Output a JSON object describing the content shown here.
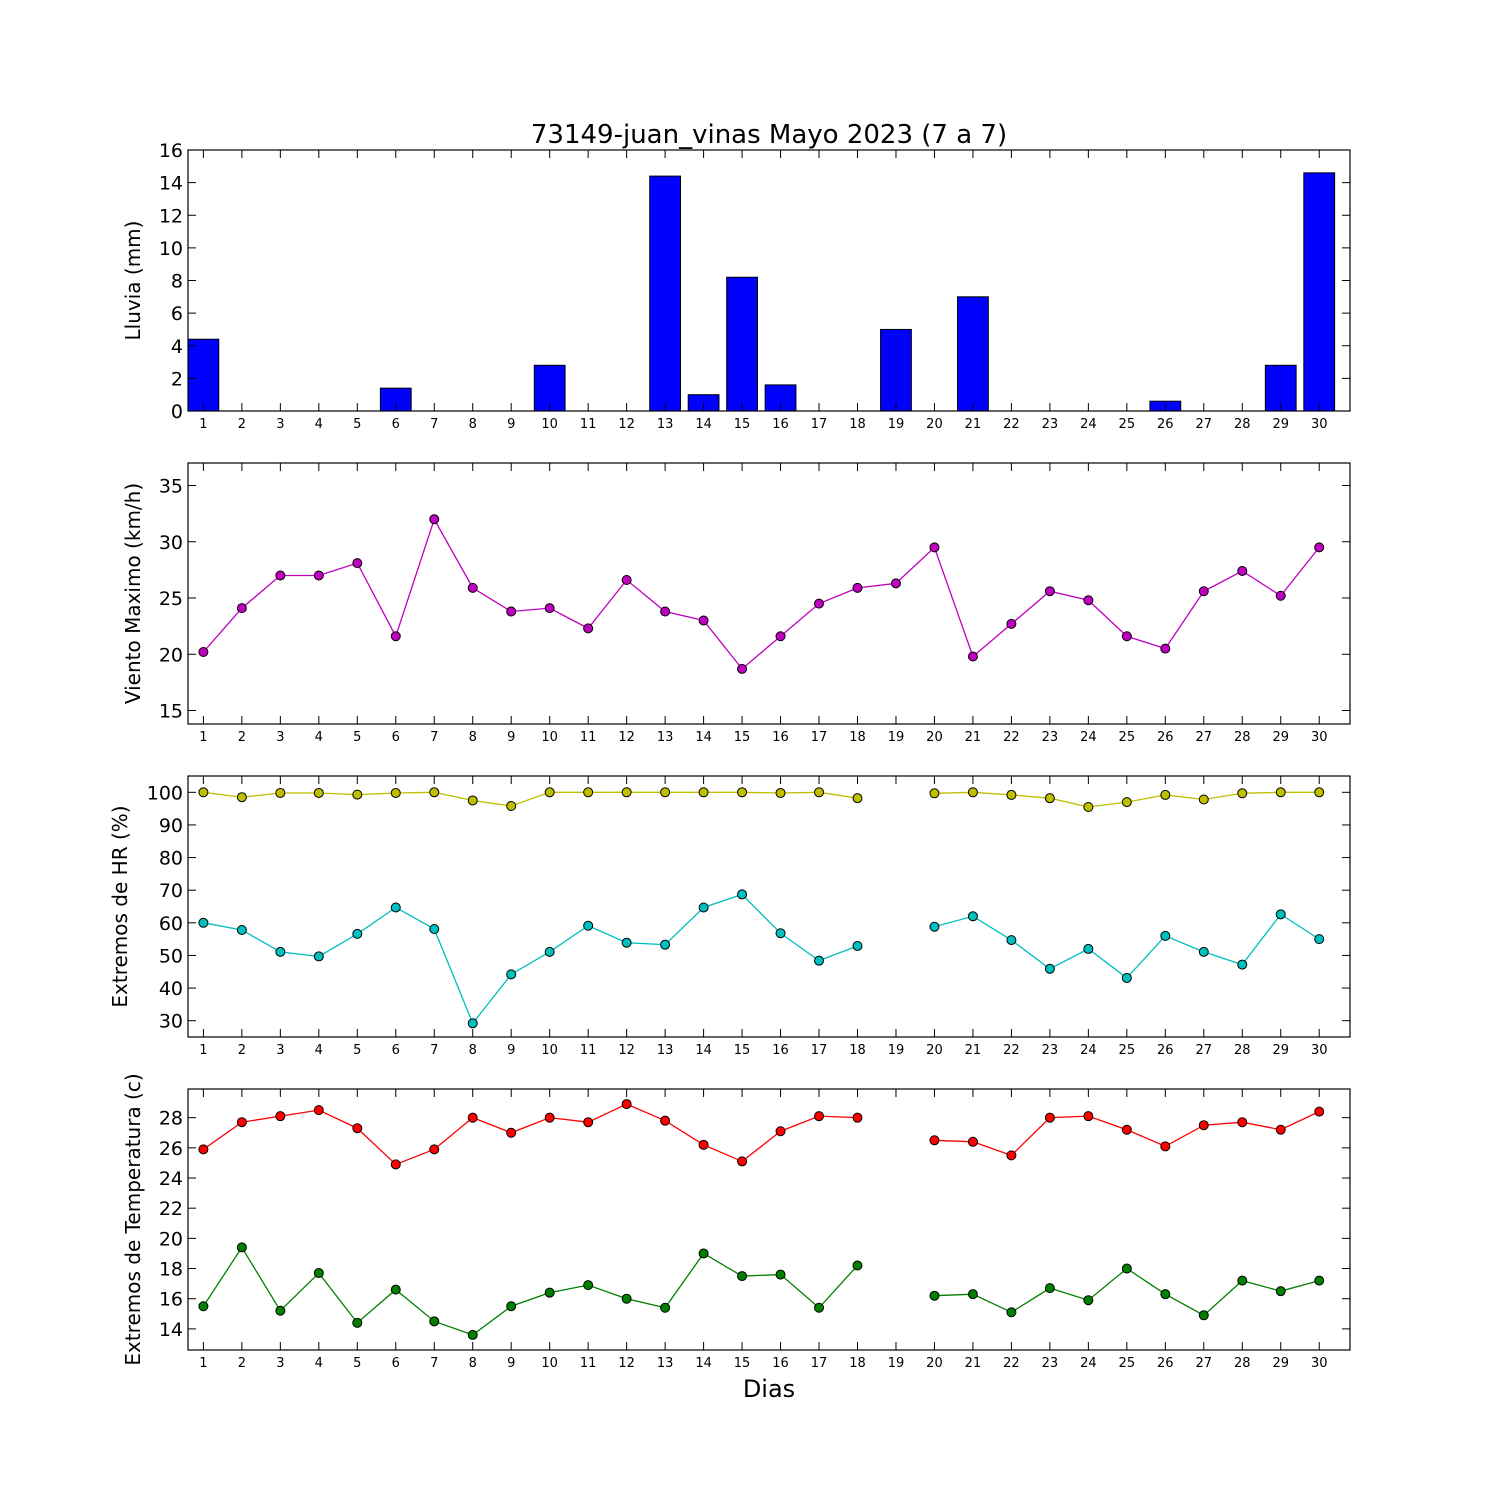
{
  "title": "73149-juan_vinas Mayo 2023  (7 a 7)",
  "xlabel": "Dias",
  "days": [
    1,
    2,
    3,
    4,
    5,
    6,
    7,
    8,
    9,
    10,
    11,
    12,
    13,
    14,
    15,
    16,
    17,
    18,
    19,
    20,
    21,
    22,
    23,
    24,
    25,
    26,
    27,
    28,
    29,
    30
  ],
  "chart_data": [
    {
      "type": "bar",
      "ylabel": "Lluvia (mm)",
      "ylim": [
        0,
        16
      ],
      "yticks": [
        0,
        2,
        4,
        6,
        8,
        10,
        12,
        14,
        16
      ],
      "categories": [
        1,
        2,
        3,
        4,
        5,
        6,
        7,
        8,
        9,
        10,
        11,
        12,
        13,
        14,
        15,
        16,
        17,
        18,
        19,
        20,
        21,
        22,
        23,
        24,
        25,
        26,
        27,
        28,
        29,
        30
      ],
      "series": [
        {
          "color": "#0000ff",
          "values": [
            4.4,
            0,
            0,
            0,
            0,
            1.4,
            0,
            0,
            0,
            2.8,
            0,
            0,
            14.4,
            1.0,
            8.2,
            1.6,
            0,
            0,
            5.0,
            0,
            7.0,
            0,
            0,
            0,
            0,
            0.6,
            0,
            0,
            2.8,
            14.6
          ]
        }
      ]
    },
    {
      "type": "line",
      "ylabel": "Viento Maximo (km/h)",
      "ylim": [
        13.8,
        37
      ],
      "yticks": [
        15,
        20,
        25,
        30,
        35
      ],
      "x": [
        1,
        2,
        3,
        4,
        5,
        6,
        7,
        8,
        9,
        10,
        11,
        12,
        13,
        14,
        15,
        16,
        17,
        18,
        19,
        20,
        21,
        22,
        23,
        24,
        25,
        26,
        27,
        28,
        29,
        30
      ],
      "series": [
        {
          "color": "#bf00bf",
          "values": [
            20.2,
            24.1,
            27.0,
            27.0,
            28.1,
            21.6,
            32.0,
            25.9,
            23.8,
            24.1,
            22.3,
            26.6,
            23.8,
            23.0,
            18.7,
            21.6,
            24.5,
            25.9,
            26.3,
            29.5,
            19.8,
            22.7,
            25.6,
            24.8,
            21.6,
            20.5,
            25.6,
            27.4,
            25.2,
            29.5
          ]
        }
      ]
    },
    {
      "type": "line",
      "ylabel": "Extremos de HR (%)",
      "ylim": [
        25,
        105
      ],
      "yticks": [
        30,
        40,
        50,
        60,
        70,
        80,
        90,
        100
      ],
      "x": [
        1,
        2,
        3,
        4,
        5,
        6,
        7,
        8,
        9,
        10,
        11,
        12,
        13,
        14,
        15,
        16,
        17,
        18,
        19,
        20,
        21,
        22,
        23,
        24,
        25,
        26,
        27,
        28,
        29,
        30
      ],
      "series": [
        {
          "color": "#bfbf00",
          "values": [
            100,
            98.5,
            99.8,
            99.8,
            99.3,
            99.8,
            100,
            97.5,
            95.8,
            100,
            100,
            100,
            100,
            100,
            100,
            99.8,
            100,
            98.2,
            null,
            99.7,
            100,
            99.2,
            98.2,
            95.5,
            97,
            99.2,
            97.8,
            99.7,
            100,
            100
          ]
        },
        {
          "color": "#00bfbf",
          "values": [
            60,
            57.8,
            51.1,
            49.7,
            56.6,
            64.7,
            58.1,
            29.2,
            44.2,
            51.1,
            59.1,
            53.9,
            53.3,
            64.7,
            68.7,
            56.8,
            48.4,
            52.9,
            null,
            58.8,
            62,
            54.7,
            45.9,
            52,
            43.1,
            56,
            51.1,
            47.2,
            62.6,
            55
          ]
        }
      ]
    },
    {
      "type": "line",
      "ylabel": "Extremos de Temperatura (c)",
      "ylim": [
        12.6,
        29.9
      ],
      "yticks": [
        14,
        16,
        18,
        20,
        22,
        24,
        26,
        28
      ],
      "x": [
        1,
        2,
        3,
        4,
        5,
        6,
        7,
        8,
        9,
        10,
        11,
        12,
        13,
        14,
        15,
        16,
        17,
        18,
        19,
        20,
        21,
        22,
        23,
        24,
        25,
        26,
        27,
        28,
        29,
        30
      ],
      "series": [
        {
          "color": "#ff0000",
          "values": [
            25.9,
            27.7,
            28.1,
            28.5,
            27.3,
            24.9,
            25.9,
            28.0,
            27.0,
            28.0,
            27.7,
            28.9,
            27.8,
            26.2,
            25.1,
            27.1,
            28.1,
            28.0,
            null,
            26.5,
            26.4,
            25.5,
            28.0,
            28.1,
            27.2,
            26.1,
            27.5,
            27.7,
            27.2,
            28.4
          ]
        },
        {
          "color": "#007f00",
          "values": [
            15.5,
            19.4,
            15.2,
            17.7,
            14.4,
            16.6,
            14.5,
            13.6,
            15.5,
            16.4,
            16.9,
            16.0,
            15.4,
            19.0,
            17.5,
            17.6,
            15.4,
            18.2,
            null,
            16.2,
            16.3,
            15.1,
            16.7,
            15.9,
            18.0,
            16.3,
            14.9,
            17.2,
            16.5,
            17.2
          ]
        }
      ]
    }
  ]
}
